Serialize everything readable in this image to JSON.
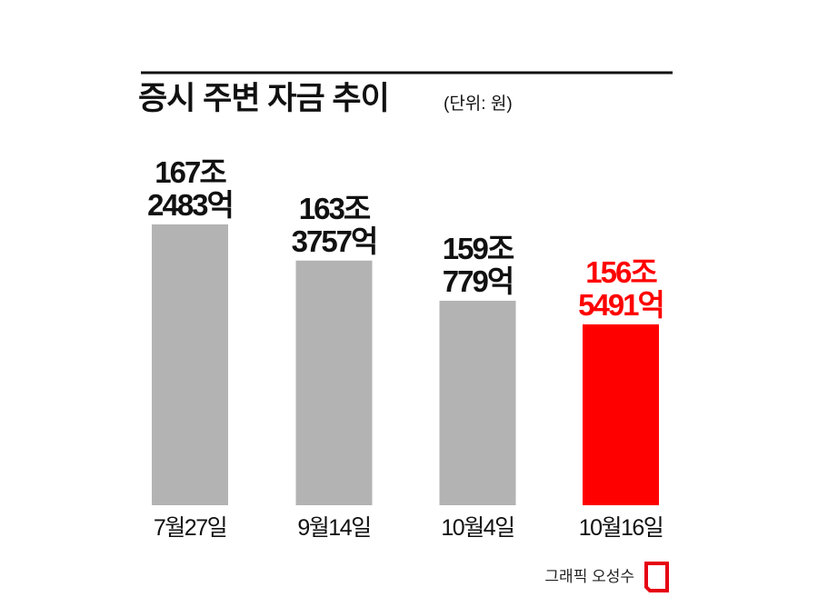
{
  "chart_data": {
    "type": "bar",
    "title": "증시 주변 자금 추이",
    "subtitle": "(단위: 원)",
    "credit": "그래픽 오성수",
    "categories": [
      "7월27일",
      "9월14일",
      "10월4일",
      "10월16일"
    ],
    "values": [
      1672483,
      1633757,
      1590779,
      1565491
    ],
    "value_labels": [
      [
        "167조",
        "2483억"
      ],
      [
        "163조",
        "3757억"
      ],
      [
        "159조",
        "779억"
      ],
      [
        "156조",
        "5491억"
      ]
    ],
    "colors": [
      "#b3b3b3",
      "#b3b3b3",
      "#b3b3b3",
      "#ff0000"
    ],
    "value_label_colors": [
      "#111111",
      "#111111",
      "#111111",
      "#ff0000"
    ],
    "ylim": [
      1372000,
      1757000
    ]
  }
}
